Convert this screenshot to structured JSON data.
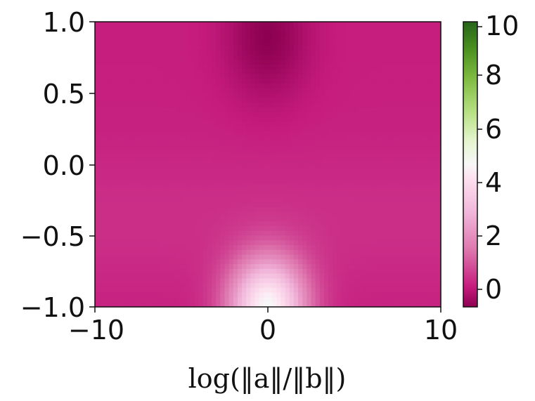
{
  "chart_data": {
    "type": "heatmap",
    "title": "",
    "xlabel": "log(‖a‖/‖b‖)",
    "ylabel": "",
    "xlim": [
      -10,
      10
    ],
    "ylim": [
      -1.0,
      1.0
    ],
    "x_ticks": [
      "−10",
      "0",
      "10"
    ],
    "x_tick_values": [
      -10,
      0,
      10
    ],
    "y_ticks": [
      "1.0",
      "0.5",
      "0.0",
      "−0.5",
      "−1.0"
    ],
    "y_tick_values": [
      1.0,
      0.5,
      0.0,
      -0.5,
      -1.0
    ],
    "colormap": "PiYG",
    "colorbar": {
      "range": [
        -0.7,
        10
      ],
      "ticks": [
        "10",
        "8",
        "6",
        "4",
        "2",
        "0"
      ],
      "tick_values": [
        10,
        8,
        6,
        4,
        2,
        0
      ]
    },
    "field_description_values": {
      "background_value": 0.1,
      "peak": {
        "x": 0,
        "y": -1.0,
        "value": 4.6
      },
      "dip": {
        "x": 0,
        "y": 0.9,
        "value": -0.7
      }
    },
    "grid": false
  },
  "colors": {
    "magenta": "#c51b7d",
    "pink": "#de77ae",
    "white": "#f7f7f7",
    "green": "#276419"
  }
}
